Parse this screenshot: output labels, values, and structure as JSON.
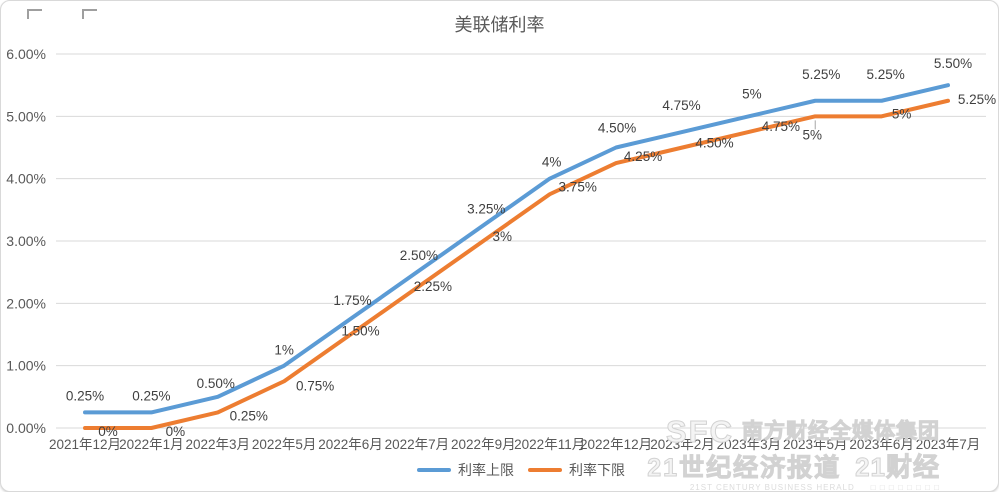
{
  "chart_data": {
    "type": "line",
    "title": "美联储利率",
    "categories": [
      "2021年12月",
      "2022年1月",
      "2022年3月",
      "2022年5月",
      "2022年6月",
      "2022年7月",
      "2022年9月",
      "2022年11月",
      "2022年12月",
      "2023年2月",
      "2023年3月",
      "2023年5月",
      "2023年6月",
      "2023年7月"
    ],
    "y_ticks": [
      "6.00%",
      "5.00%",
      "4.00%",
      "3.00%",
      "2.00%",
      "1.00%",
      "0.00%"
    ],
    "ylim": [
      0,
      6
    ],
    "grid": "horizontal",
    "legend_position": "bottom",
    "series": [
      {
        "name": "利率上限",
        "color": "#5B9BD5",
        "values": [
          0.25,
          0.25,
          0.5,
          1,
          1.75,
          2.5,
          3.25,
          4,
          4.5,
          4.75,
          5,
          5.25,
          5.25,
          5.5
        ],
        "labels": [
          "0.25%",
          "0.25%",
          "0.50%",
          "1%",
          "1.75%",
          "2.50%",
          "3.25%",
          "4%",
          "4.50%",
          "4.75%",
          "5%",
          "5.25%",
          "5.25%",
          "5.50%"
        ]
      },
      {
        "name": "利率下限",
        "color": "#ED7D31",
        "values": [
          0,
          0,
          0.25,
          0.75,
          1.5,
          2.25,
          3,
          3.75,
          4.25,
          4.5,
          4.75,
          5,
          5,
          5.25
        ],
        "labels": [
          "0%",
          "0%",
          "0.25%",
          "0.75%",
          "1.50%",
          "2.25%",
          "3%",
          "3.75%",
          "4.25%",
          "4.50%",
          "4.75%",
          "5%",
          "5%",
          "5.25%"
        ]
      }
    ]
  },
  "style": {
    "grid_color": "#d9d9d9",
    "axis_text_color": "#595959",
    "data_label_color": "#404040",
    "leader_line_color": "#a6a6a6"
  },
  "watermark": {
    "logo": "SFC",
    "group": "南方财经全媒体集团",
    "herald": "21世纪经济报道",
    "brand": "21财经",
    "english": "21ST CENTURY BUSINESS HERALD",
    "blocks": "□ □ □ □ □ □ □ □"
  }
}
